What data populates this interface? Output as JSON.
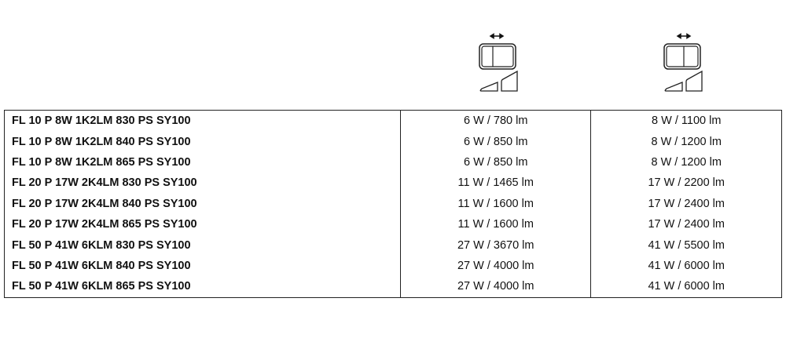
{
  "header_icons": [
    {
      "name": "switch-position-left-icon",
      "description_state": "left"
    },
    {
      "name": "switch-position-right-icon",
      "description_state": "right"
    }
  ],
  "rows": [
    {
      "name": "FL 10 P 8W 1K2LM 830 PS SY100",
      "col1": "6 W / 780 lm",
      "col2": "8 W / 1100 lm"
    },
    {
      "name": "FL 10 P 8W 1K2LM 840 PS SY100",
      "col1": "6 W / 850 lm",
      "col2": "8 W / 1200 lm"
    },
    {
      "name": "FL 10 P 8W 1K2LM 865 PS SY100",
      "col1": "6 W / 850 lm",
      "col2": "8 W / 1200 lm"
    },
    {
      "name": "FL 20 P 17W 2K4LM 830 PS SY100",
      "col1": "11 W / 1465 lm",
      "col2": "17 W / 2200 lm"
    },
    {
      "name": "FL 20 P 17W 2K4LM 840 PS SY100",
      "col1": "11 W / 1600 lm",
      "col2": "17 W / 2400 lm"
    },
    {
      "name": "FL 20 P 17W 2K4LM 865 PS SY100",
      "col1": "11 W / 1600 lm",
      "col2": "17 W / 2400 lm"
    },
    {
      "name": "FL 50 P 41W 6KLM 830 PS SY100",
      "col1": "27 W / 3670 lm",
      "col2": "41 W / 5500 lm"
    },
    {
      "name": "FL 50 P 41W 6KLM 840 PS SY100",
      "col1": "27 W / 4000 lm",
      "col2": "41 W / 6000 lm"
    },
    {
      "name": "FL 50 P 41W 6KLM 865 PS SY100",
      "col1": "27 W / 4000 lm",
      "col2": "41 W / 6000 lm"
    }
  ]
}
